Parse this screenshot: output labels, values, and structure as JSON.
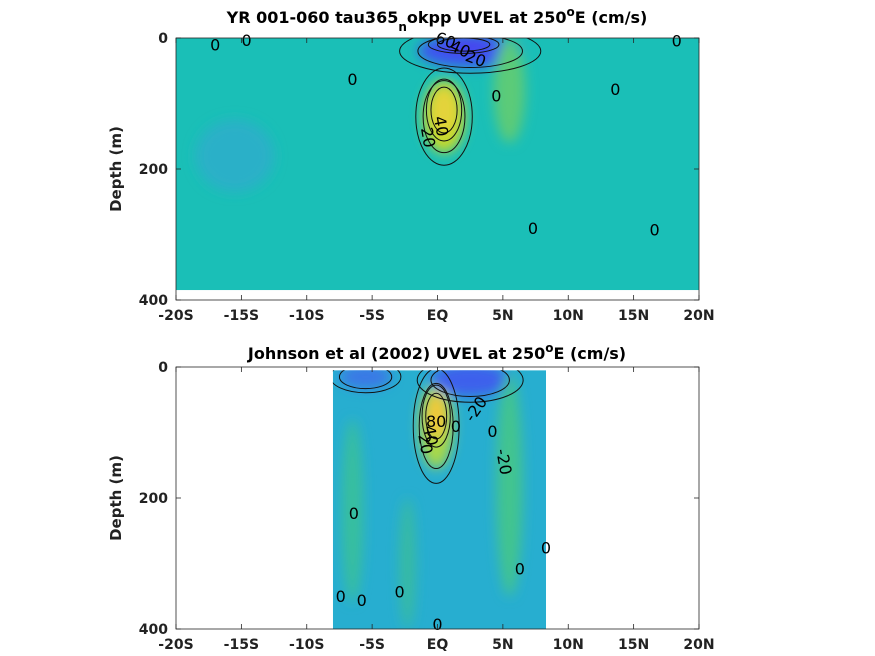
{
  "chart_data": [
    {
      "type": "heatmap",
      "panel": "top",
      "title_main": "YR 001-060 tau365",
      "title_sub": "n",
      "title_rest": "okpp UVEL at 250",
      "title_sup": "o",
      "title_end": "E (cm/s)",
      "ylabel": "Depth (m)",
      "xlim": [
        -20,
        20
      ],
      "ylim": [
        0,
        400
      ],
      "x_ticks": [
        {
          "value": -20,
          "label": "-20S"
        },
        {
          "value": -15,
          "label": "-15S"
        },
        {
          "value": -10,
          "label": "-10S"
        },
        {
          "value": -5,
          "label": "-5S"
        },
        {
          "value": 0,
          "label": "EQ"
        },
        {
          "value": 5,
          "label": "5N"
        },
        {
          "value": 10,
          "label": "10N"
        },
        {
          "value": 15,
          "label": "15N"
        },
        {
          "value": 20,
          "label": "20N"
        }
      ],
      "y_ticks": [
        {
          "value": 0,
          "label": "0"
        },
        {
          "value": 200,
          "label": "200"
        },
        {
          "value": 400,
          "label": "400"
        }
      ],
      "data_extent": {
        "lat": [
          -20,
          20
        ],
        "depth": [
          0,
          385
        ]
      },
      "background": "#1abfb7",
      "features": [
        {
          "kind": "jet",
          "lat": 0.5,
          "depth": 120,
          "lat_width": 1.6,
          "depth_width": 55,
          "color": "#c6d92c"
        },
        {
          "kind": "jet",
          "lat": 0.5,
          "depth": 110,
          "lat_width": 1.0,
          "depth_width": 35,
          "color": "#e4d33a"
        },
        {
          "kind": "westward",
          "lat": 2.5,
          "depth": 20,
          "lat_width": 4,
          "depth_width": 25,
          "color": "#3e55ef"
        },
        {
          "kind": "westward",
          "lat": 2.0,
          "depth": 10,
          "lat_width": 2.0,
          "depth_width": 10,
          "color": "#4a3ff0"
        },
        {
          "kind": "weak-east",
          "lat": 5.5,
          "depth": 80,
          "lat_width": 1.2,
          "depth_width": 80,
          "color": "#5ccb78"
        },
        {
          "kind": "weak-west",
          "lat": -15.5,
          "depth": 180,
          "lat_width": 3,
          "depth_width": 55,
          "color": "#2ab0c8"
        }
      ],
      "contour_labels": [
        {
          "text": "0",
          "lat": -17.0,
          "depth": 12,
          "rotate": 0
        },
        {
          "text": "0",
          "lat": -14.6,
          "depth": 5,
          "rotate": 0
        },
        {
          "text": "0",
          "lat": -6.5,
          "depth": 65,
          "rotate": 0
        },
        {
          "text": "60",
          "lat": 0.6,
          "depth": 5,
          "rotate": 20
        },
        {
          "text": "40",
          "lat": 1.7,
          "depth": 18,
          "rotate": 25
        },
        {
          "text": "20",
          "lat": 2.9,
          "depth": 33,
          "rotate": 20
        },
        {
          "text": "0",
          "lat": 4.5,
          "depth": 90,
          "rotate": 0
        },
        {
          "text": "40",
          "lat": 0.2,
          "depth": 135,
          "rotate": 80
        },
        {
          "text": "20",
          "lat": -0.8,
          "depth": 152,
          "rotate": 80
        },
        {
          "text": "0",
          "lat": 7.3,
          "depth": 292,
          "rotate": 0
        },
        {
          "text": "0",
          "lat": 13.6,
          "depth": 80,
          "rotate": 0
        },
        {
          "text": "0",
          "lat": 16.6,
          "depth": 295,
          "rotate": 0
        },
        {
          "text": "0",
          "lat": 18.3,
          "depth": 6,
          "rotate": 0
        }
      ]
    },
    {
      "type": "heatmap",
      "panel": "bottom",
      "title_main": "Johnson et al (2002) UVEL at 250",
      "title_sup": "o",
      "title_end": "E (cm/s)",
      "ylabel": "Depth (m)",
      "xlim": [
        -20,
        20
      ],
      "ylim": [
        0,
        400
      ],
      "x_ticks": [
        {
          "value": -20,
          "label": "-20S"
        },
        {
          "value": -15,
          "label": "-15S"
        },
        {
          "value": -10,
          "label": "-10S"
        },
        {
          "value": -5,
          "label": "-5S"
        },
        {
          "value": 0,
          "label": "EQ"
        },
        {
          "value": 5,
          "label": "5N"
        },
        {
          "value": 10,
          "label": "10N"
        },
        {
          "value": 15,
          "label": "15N"
        },
        {
          "value": 20,
          "label": "20N"
        }
      ],
      "y_ticks": [
        {
          "value": 0,
          "label": "0"
        },
        {
          "value": 200,
          "label": "200"
        },
        {
          "value": 400,
          "label": "400"
        }
      ],
      "data_extent": {
        "lat": [
          -8,
          8.3
        ],
        "depth": [
          5,
          400
        ]
      },
      "background": "#27aed0",
      "features": [
        {
          "kind": "jet",
          "lat": -0.1,
          "depth": 90,
          "lat_width": 1.3,
          "depth_width": 65,
          "color": "#a9d84a"
        },
        {
          "kind": "jet",
          "lat": -0.1,
          "depth": 75,
          "lat_width": 0.8,
          "depth_width": 35,
          "color": "#f0c83a"
        },
        {
          "kind": "westward",
          "lat": 2.5,
          "depth": 20,
          "lat_width": 3,
          "depth_width": 25,
          "color": "#3e60ec"
        },
        {
          "kind": "westward",
          "lat": -5.5,
          "depth": 15,
          "lat_width": 2,
          "depth_width": 18,
          "color": "#3b78e6"
        },
        {
          "kind": "weak-east",
          "lat": 5.5,
          "depth": 180,
          "lat_width": 1.0,
          "depth_width": 170,
          "color": "#43c48f"
        },
        {
          "kind": "weak-east",
          "lat": -6.5,
          "depth": 220,
          "lat_width": 0.8,
          "depth_width": 140,
          "color": "#39bf9d"
        },
        {
          "kind": "weak-east",
          "lat": -2.3,
          "depth": 300,
          "lat_width": 0.6,
          "depth_width": 100,
          "color": "#37bba0"
        }
      ],
      "contour_labels": [
        {
          "text": "80",
          "lat": -0.1,
          "depth": 85,
          "rotate": 0
        },
        {
          "text": "40",
          "lat": -0.6,
          "depth": 105,
          "rotate": 80
        },
        {
          "text": "20",
          "lat": -1.0,
          "depth": 118,
          "rotate": 80
        },
        {
          "text": "0",
          "lat": 1.4,
          "depth": 92,
          "rotate": 0
        },
        {
          "text": "-20",
          "lat": 3.0,
          "depth": 65,
          "rotate": -55
        },
        {
          "text": "0",
          "lat": 4.2,
          "depth": 100,
          "rotate": 0
        },
        {
          "text": "-20",
          "lat": 5.0,
          "depth": 145,
          "rotate": 80
        },
        {
          "text": "0",
          "lat": -6.4,
          "depth": 225,
          "rotate": 0
        },
        {
          "text": "0",
          "lat": 8.3,
          "depth": 278,
          "rotate": 0
        },
        {
          "text": "0",
          "lat": 6.3,
          "depth": 310,
          "rotate": 0
        },
        {
          "text": "0",
          "lat": -7.4,
          "depth": 352,
          "rotate": 0
        },
        {
          "text": "0",
          "lat": -5.8,
          "depth": 358,
          "rotate": 0
        },
        {
          "text": "0",
          "lat": -2.9,
          "depth": 345,
          "rotate": 0
        },
        {
          "text": "0",
          "lat": 0.0,
          "depth": 395,
          "rotate": 0
        }
      ]
    }
  ]
}
